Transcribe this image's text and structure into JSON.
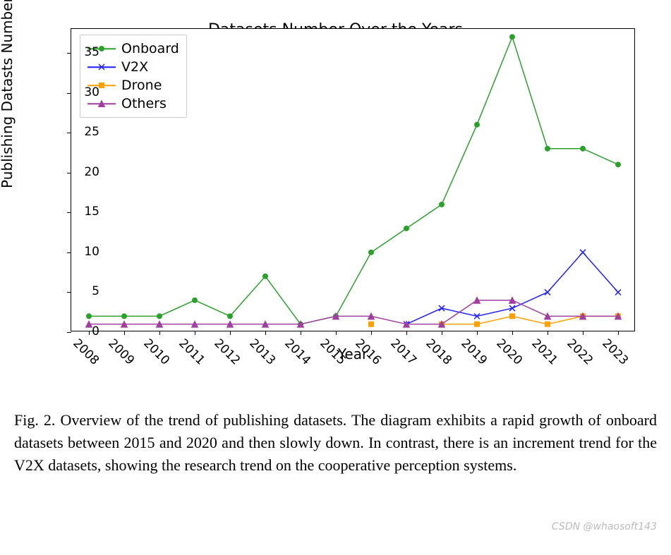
{
  "chart": {
    "type": "line",
    "title": "Datasets Number Over the Years",
    "title_fontsize": 22,
    "xlabel": "Year",
    "ylabel": "Publishing Datasts Number",
    "label_fontsize": 20,
    "tick_fontsize": 17,
    "background_color": "#ffffff",
    "border_color": "#000000",
    "x_values": [
      "2008",
      "2009",
      "2010",
      "2011",
      "2012",
      "2013",
      "2014",
      "2015",
      "2016",
      "2017",
      "2018",
      "2019",
      "2020",
      "2021",
      "2022",
      "2023"
    ],
    "x_tick_rotation": 45,
    "ylim": [
      0,
      38
    ],
    "ytick_step": 5,
    "y_ticks": [
      0,
      5,
      10,
      15,
      20,
      25,
      30,
      35
    ],
    "line_width": 1.5,
    "marker_size": 5,
    "series": [
      {
        "label": "Onboard",
        "color": "#2ca02c",
        "marker": "circle",
        "values": [
          2,
          2,
          2,
          4,
          2,
          7,
          1,
          2,
          10,
          13,
          16,
          26,
          37,
          23,
          23,
          21
        ]
      },
      {
        "label": "V2X",
        "color": "#1f1fff",
        "marker": "x",
        "values": [
          null,
          null,
          null,
          null,
          null,
          null,
          null,
          null,
          null,
          1,
          3,
          2,
          3,
          5,
          10,
          5
        ]
      },
      {
        "label": "Drone",
        "color": "#ff9f00",
        "marker": "square",
        "values": [
          null,
          null,
          null,
          null,
          null,
          null,
          null,
          null,
          1,
          null,
          1,
          1,
          2,
          1,
          2,
          2
        ]
      },
      {
        "label": "Others",
        "color": "#9f3f9f",
        "marker": "triangle",
        "values": [
          1,
          1,
          1,
          1,
          1,
          1,
          1,
          2,
          2,
          1,
          1,
          4,
          4,
          2,
          2,
          2
        ]
      }
    ],
    "legend": {
      "position": "upper-left",
      "fontsize": 19,
      "border_color": "#cccccc"
    }
  },
  "caption": {
    "text": "Fig. 2.  Overview of the trend of publishing datasets. The diagram exhibits a rapid growth of onboard datasets between 2015 and 2020 and then slowly down. In contrast, there is an increment trend for the V2X datasets, showing the research trend on the cooperative perception systems.",
    "font_family": "Times New Roman",
    "fontsize": 22
  },
  "watermark": "CSDN @whaosoft143"
}
